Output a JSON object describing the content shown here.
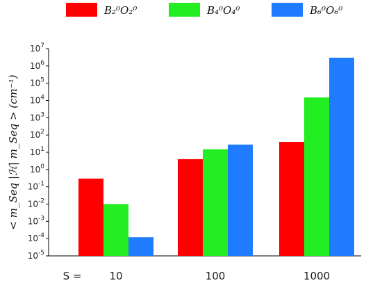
{
  "chart_data": {
    "type": "bar",
    "yscale": "log",
    "ylim": [
      1e-05,
      10000000.0
    ],
    "ylabel": "< m_Seq |ℋ| m_Seq >   (cm⁻¹)",
    "xlabel": "",
    "x_prefix": "S =",
    "categories": [
      "10",
      "100",
      "1000"
    ],
    "series": [
      {
        "name": "B₂⁰O₂⁰",
        "color": "#ff0000",
        "values": [
          0.3,
          4,
          40
        ]
      },
      {
        "name": "B₄⁰O₄⁰",
        "color": "#22ee22",
        "values": [
          0.01,
          15,
          15000
        ]
      },
      {
        "name": "B₆⁰O₆⁰",
        "color": "#1f7bff",
        "values": [
          0.00012,
          28,
          3000000
        ]
      }
    ],
    "legend_position": "top",
    "grid": false
  }
}
